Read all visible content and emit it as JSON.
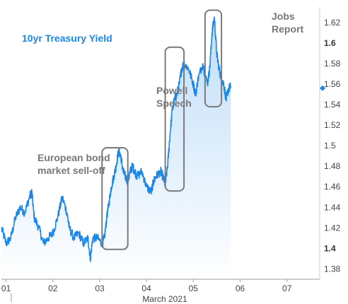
{
  "chart_data": {
    "type": "line",
    "title": "10yr Treasury Yield",
    "xlabel": "March 2021",
    "ylabel": "",
    "x_tick_labels": [
      "01",
      "02",
      "03",
      "04",
      "05",
      "06",
      "07"
    ],
    "x_range": [
      0.9,
      7.7
    ],
    "y_ticks": [
      "1.38",
      "1.4",
      "1.42",
      "1.44",
      "1.46",
      "1.48",
      "1.5",
      "1.52",
      "1.54",
      "1.56",
      "1.58",
      "1.6",
      "1.62"
    ],
    "y_bold_ticks": [
      "1.4",
      "1.6"
    ],
    "ylim": [
      1.37,
      1.635
    ],
    "grid": false,
    "current_value": 1.556,
    "series": [
      {
        "name": "",
        "color": "#1a86e8",
        "x": [
          0.9,
          1.0,
          1.1,
          1.2,
          1.3,
          1.4,
          1.5,
          1.55,
          1.6,
          1.7,
          1.8,
          1.9,
          2.0,
          2.1,
          2.2,
          2.3,
          2.35,
          2.45,
          2.55,
          2.65,
          2.75,
          2.8,
          2.85,
          2.95,
          3.05,
          3.1,
          3.15,
          3.2,
          3.25,
          3.3,
          3.35,
          3.4,
          3.45,
          3.5,
          3.55,
          3.6,
          3.65,
          3.7,
          3.75,
          3.8,
          3.9,
          4.0,
          4.1,
          4.15,
          4.2,
          4.3,
          4.35,
          4.4,
          4.45,
          4.5,
          4.55,
          4.6,
          4.65,
          4.7,
          4.75,
          4.8,
          4.9,
          5.0,
          5.05,
          5.1,
          5.2,
          5.3,
          5.35,
          5.4,
          5.45,
          5.5,
          5.55,
          5.6,
          5.65,
          5.7,
          5.75,
          5.8
        ],
        "values": [
          1.42,
          1.405,
          1.41,
          1.43,
          1.44,
          1.435,
          1.45,
          1.455,
          1.43,
          1.42,
          1.405,
          1.41,
          1.415,
          1.43,
          1.45,
          1.435,
          1.42,
          1.41,
          1.415,
          1.405,
          1.41,
          1.39,
          1.41,
          1.41,
          1.405,
          1.41,
          1.43,
          1.445,
          1.46,
          1.47,
          1.48,
          1.495,
          1.49,
          1.475,
          1.47,
          1.465,
          1.475,
          1.48,
          1.475,
          1.47,
          1.475,
          1.46,
          1.455,
          1.465,
          1.47,
          1.475,
          1.47,
          1.462,
          1.48,
          1.51,
          1.535,
          1.545,
          1.55,
          1.56,
          1.575,
          1.58,
          1.575,
          1.56,
          1.55,
          1.565,
          1.58,
          1.56,
          1.575,
          1.61,
          1.625,
          1.59,
          1.575,
          1.565,
          1.56,
          1.545,
          1.555,
          1.558
        ]
      }
    ],
    "annotations": [
      {
        "label_lines": [
          "European bond",
          "market sell-off"
        ],
        "x_range": [
          3.05,
          3.6
        ],
        "y_range": [
          1.399,
          1.498
        ]
      },
      {
        "label_lines": [
          "Powell",
          "Speech"
        ],
        "x_range": [
          4.4,
          4.8
        ],
        "y_range": [
          1.456,
          1.596
        ]
      },
      {
        "label_lines": [
          "Jobs",
          "Report"
        ],
        "x_range": [
          5.25,
          5.6
        ],
        "y_range": [
          1.538,
          1.632
        ]
      }
    ]
  }
}
